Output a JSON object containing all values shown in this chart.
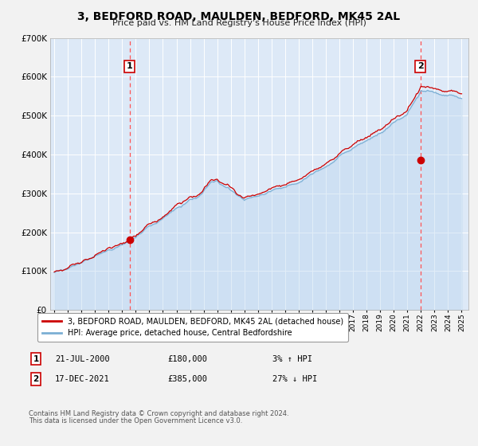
{
  "title": "3, BEDFORD ROAD, MAULDEN, BEDFORD, MK45 2AL",
  "subtitle": "Price paid vs. HM Land Registry's House Price Index (HPI)",
  "x_start_year": 1995,
  "x_end_year": 2025,
  "y_min": 0,
  "y_max": 700000,
  "y_ticks": [
    0,
    100000,
    200000,
    300000,
    400000,
    500000,
    600000,
    700000
  ],
  "background_color": "#dde9f7",
  "fig_color": "#f0f0f0",
  "grid_color": "#ffffff",
  "hpi_line_color": "#7bafd4",
  "price_line_color": "#cc0000",
  "marker_color": "#cc0000",
  "vline_color": "#ff5555",
  "sale1_year": 2000.54,
  "sale1_price": 180000,
  "sale2_year": 2021.96,
  "sale2_price": 385000,
  "legend_line1": "3, BEDFORD ROAD, MAULDEN, BEDFORD, MK45 2AL (detached house)",
  "legend_line2": "HPI: Average price, detached house, Central Bedfordshire",
  "sale1_date": "21-JUL-2000",
  "sale1_price_str": "£180,000",
  "sale1_hpi_str": "3% ↑ HPI",
  "sale2_date": "17-DEC-2021",
  "sale2_price_str": "£385,000",
  "sale2_hpi_str": "27% ↓ HPI",
  "footnote1": "Contains HM Land Registry data © Crown copyright and database right 2024.",
  "footnote2": "This data is licensed under the Open Government Licence v3.0."
}
